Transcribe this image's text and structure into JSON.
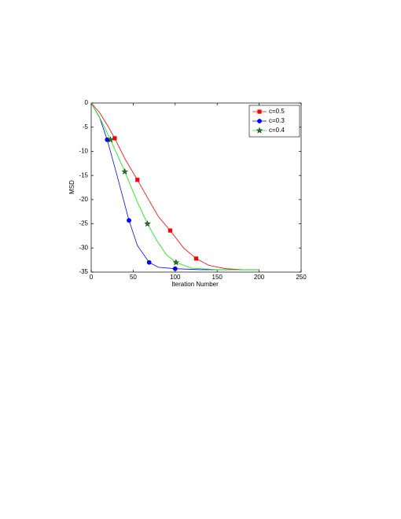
{
  "chart_data": {
    "type": "line",
    "xlabel": "Iteration Number",
    "ylabel": "MSD",
    "xlim": [
      0,
      250
    ],
    "xticks": [
      0,
      50,
      100,
      150,
      200,
      250
    ],
    "ylim": [
      -35,
      0
    ],
    "yticks": [
      -35,
      -30,
      -25,
      -20,
      -15,
      -10,
      -5,
      0
    ],
    "legend": "upper-right",
    "series": [
      {
        "name": "c=0.5",
        "color": "#ff0000",
        "marker": "square",
        "x": [
          0,
          10,
          20,
          28,
          40,
          55,
          70,
          80,
          94,
          110,
          125,
          140,
          160,
          180,
          200
        ],
        "values": [
          0,
          -2,
          -4.8,
          -7.3,
          -11.5,
          -15.9,
          -20.5,
          -23.5,
          -26.4,
          -30,
          -32.2,
          -33.6,
          -34.3,
          -34.5,
          -34.5
        ],
        "markers": {
          "x": [
            28,
            55,
            94,
            125
          ],
          "values": [
            -7.3,
            -15.9,
            -26.4,
            -32.2
          ]
        }
      },
      {
        "name": "c=0.3",
        "color": "#0000ff",
        "marker": "circle",
        "x": [
          0,
          10,
          19,
          30,
          45,
          55,
          69,
          80,
          100,
          130,
          200
        ],
        "values": [
          0,
          -3,
          -7.6,
          -14.5,
          -24.3,
          -29.5,
          -33,
          -34,
          -34.3,
          -34.5,
          -34.5
        ],
        "markers": {
          "x": [
            19,
            45,
            69,
            100
          ],
          "values": [
            -7.6,
            -24.3,
            -33,
            -34.3
          ]
        }
      },
      {
        "name": "c=0.4",
        "color": "#00ee00",
        "marker": "star",
        "x": [
          0,
          10,
          23,
          40,
          55,
          67,
          80,
          90,
          101,
          120,
          150,
          200
        ],
        "values": [
          0,
          -3,
          -7.6,
          -14.2,
          -20.5,
          -25,
          -29,
          -31.5,
          -33,
          -34.2,
          -34.5,
          -34.5
        ],
        "markers": {
          "x": [
            23,
            40,
            67,
            101
          ],
          "values": [
            -7.6,
            -14.2,
            -25,
            -33
          ]
        }
      }
    ]
  }
}
